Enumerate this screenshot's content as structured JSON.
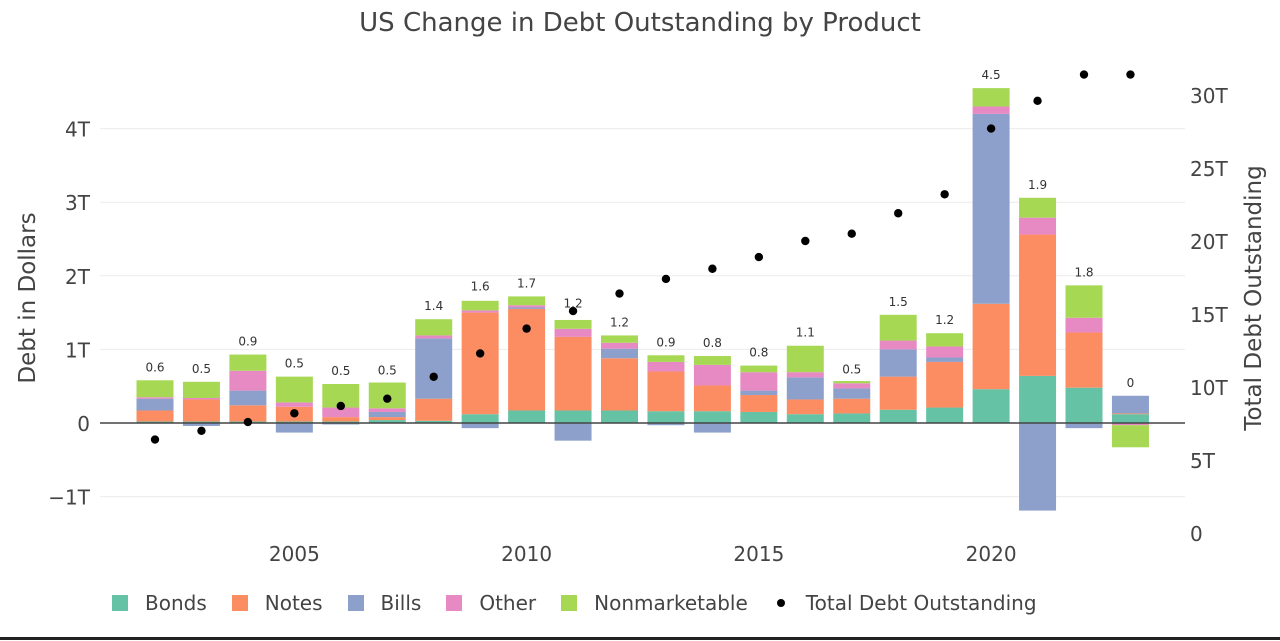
{
  "chart_data": {
    "type": "bar",
    "title": "US Change in Debt Outstanding by Product",
    "ylabel": "Debt in Dollars",
    "y2label": "Total Debt Outstanding",
    "ylim": [
      -1.4,
      4.75
    ],
    "y2lim": [
      0,
      33.5
    ],
    "y_ticks": [
      {
        "v": -1,
        "label": "−1T"
      },
      {
        "v": 0,
        "label": "0"
      },
      {
        "v": 1,
        "label": "1T"
      },
      {
        "v": 2,
        "label": "2T"
      },
      {
        "v": 3,
        "label": "3T"
      },
      {
        "v": 4,
        "label": "4T"
      }
    ],
    "y2_ticks": [
      {
        "v": 0,
        "label": "0"
      },
      {
        "v": 5,
        "label": "5T"
      },
      {
        "v": 10,
        "label": "10T"
      },
      {
        "v": 15,
        "label": "15T"
      },
      {
        "v": 20,
        "label": "20T"
      },
      {
        "v": 25,
        "label": "25T"
      },
      {
        "v": 30,
        "label": "30T"
      }
    ],
    "x_ticks": [
      2005,
      2010,
      2015,
      2020
    ],
    "x": [
      2002,
      2003,
      2004,
      2005,
      2006,
      2007,
      2008,
      2009,
      2010,
      2011,
      2012,
      2013,
      2014,
      2015,
      2016,
      2017,
      2018,
      2019,
      2020,
      2021,
      2022,
      2023
    ],
    "series": [
      {
        "name": "Bonds",
        "color": "#66c2a5",
        "values": [
          0.02,
          0.02,
          0.02,
          0.02,
          0.02,
          0.04,
          0.03,
          0.12,
          0.17,
          0.17,
          0.17,
          0.16,
          0.16,
          0.15,
          0.12,
          0.13,
          0.18,
          0.21,
          0.46,
          0.64,
          0.48,
          0.12
        ]
      },
      {
        "name": "Notes",
        "color": "#fc8d62",
        "values": [
          0.15,
          0.3,
          0.22,
          0.2,
          0.06,
          0.04,
          0.3,
          1.38,
          1.38,
          1.0,
          0.71,
          0.54,
          0.35,
          0.23,
          0.2,
          0.2,
          0.45,
          0.62,
          1.16,
          1.92,
          0.75,
          0.01
        ]
      },
      {
        "name": "Bills",
        "color": "#8da0cb",
        "values": [
          0.16,
          -0.04,
          0.2,
          -0.13,
          -0.02,
          0.07,
          0.82,
          -0.07,
          0.02,
          -0.24,
          0.13,
          -0.03,
          -0.13,
          0.06,
          0.3,
          0.14,
          0.37,
          0.06,
          2.58,
          -1.19,
          -0.07,
          0.24
        ]
      },
      {
        "name": "Other",
        "color": "#e78ac3",
        "values": [
          0.02,
          0.02,
          0.27,
          0.06,
          0.13,
          0.05,
          0.04,
          0.03,
          0.03,
          0.11,
          0.08,
          0.13,
          0.28,
          0.25,
          0.07,
          0.07,
          0.12,
          0.15,
          0.1,
          0.23,
          0.2,
          -0.03
        ]
      },
      {
        "name": "Nonmarketable",
        "color": "#a6d854",
        "values": [
          0.23,
          0.22,
          0.22,
          0.35,
          0.32,
          0.35,
          0.22,
          0.13,
          0.12,
          0.12,
          0.1,
          0.09,
          0.12,
          0.09,
          0.36,
          0.03,
          0.35,
          0.18,
          0.25,
          0.27,
          0.44,
          -0.3
        ]
      }
    ],
    "total_labels": [
      "0.6",
      "0.5",
      "0.9",
      "0.5",
      "0.5",
      "0.5",
      "1.4",
      "1.6",
      "1.7",
      "1.2",
      "1.2",
      "0.9",
      "0.8",
      "0.8",
      "1.1",
      "0.5",
      "1.5",
      "1.2",
      "4.5",
      "1.9",
      "1.8",
      "0"
    ],
    "label_anchor": [
      0.58,
      0.56,
      0.93,
      0.63,
      0.53,
      0.54,
      1.41,
      1.68,
      1.72,
      1.45,
      1.19,
      0.92,
      0.91,
      0.78,
      1.05,
      0.55,
      1.47,
      1.22,
      4.55,
      3.06,
      1.87,
      0.37
    ],
    "total_debt": {
      "name": "Total Debt Outstanding",
      "color": "#000000",
      "values": [
        6.4,
        7.0,
        7.6,
        8.2,
        8.7,
        9.2,
        10.7,
        12.3,
        14.0,
        15.2,
        16.4,
        17.4,
        18.1,
        18.9,
        20.0,
        20.5,
        21.9,
        23.2,
        27.7,
        29.6,
        31.4,
        31.4
      ]
    },
    "grid": true,
    "legend_position": "bottom"
  }
}
